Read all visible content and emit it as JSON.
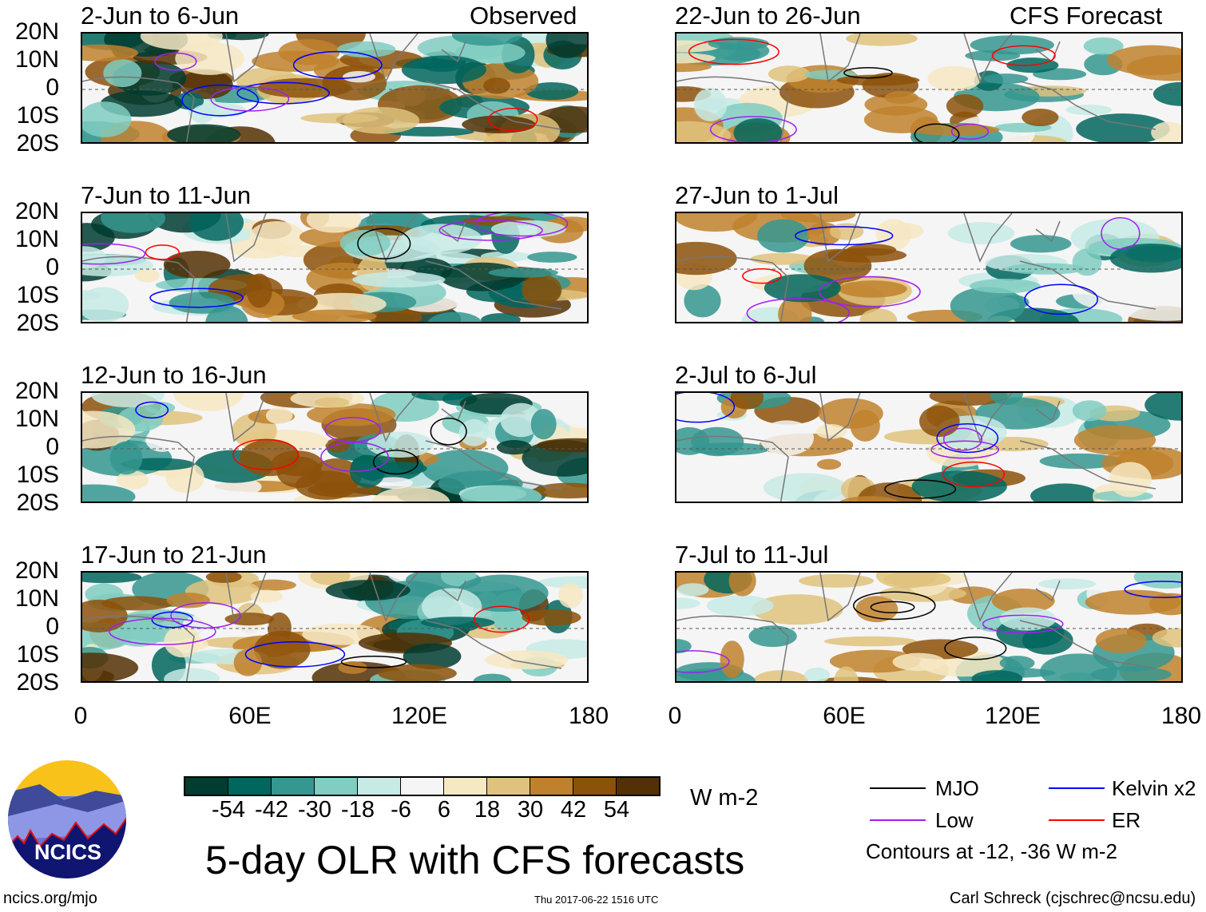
{
  "panels": {
    "observed_label": "Observed",
    "forecast_label": "CFS Forecast",
    "left": [
      "2-Jun to 6-Jun",
      "7-Jun to 11-Jun",
      "12-Jun to 16-Jun",
      "17-Jun to 21-Jun"
    ],
    "right": [
      "22-Jun to 26-Jun",
      "27-Jun to 1-Jul",
      "2-Jul to 6-Jul",
      "7-Jul to 11-Jul"
    ]
  },
  "axes": {
    "lat_labels": [
      "20N",
      "10N",
      "0",
      "10S",
      "20S"
    ],
    "lon_labels": [
      "0",
      "60E",
      "120E",
      "180"
    ]
  },
  "colorbar": {
    "colors": [
      "#003c30",
      "#01665e",
      "#35978f",
      "#80cdc1",
      "#c7eae5",
      "#f5f5f5",
      "#f6e8c3",
      "#dfc27d",
      "#bf812d",
      "#8c510a",
      "#543005"
    ],
    "labels": [
      "-54",
      "-42",
      "-30",
      "-18",
      "-6",
      "6",
      "18",
      "30",
      "42",
      "54"
    ],
    "units": "W m-2"
  },
  "title": "5-day OLR with CFS forecasts",
  "logo_text": "NCICS",
  "url": "ncics.org/mjo",
  "timestamp": "Thu 2017-06-22 1516 UTC",
  "credit": "Carl Schreck (cjschrec@ncsu.edu)",
  "legend": {
    "items": [
      {
        "label": "MJO",
        "color": "#000000"
      },
      {
        "label": "Kelvin x2",
        "color": "#0000ff"
      },
      {
        "label": "Low",
        "color": "#a020f0"
      },
      {
        "label": "ER",
        "color": "#ff0000"
      }
    ],
    "note": "Contours at -12, -36 W m-2"
  }
}
